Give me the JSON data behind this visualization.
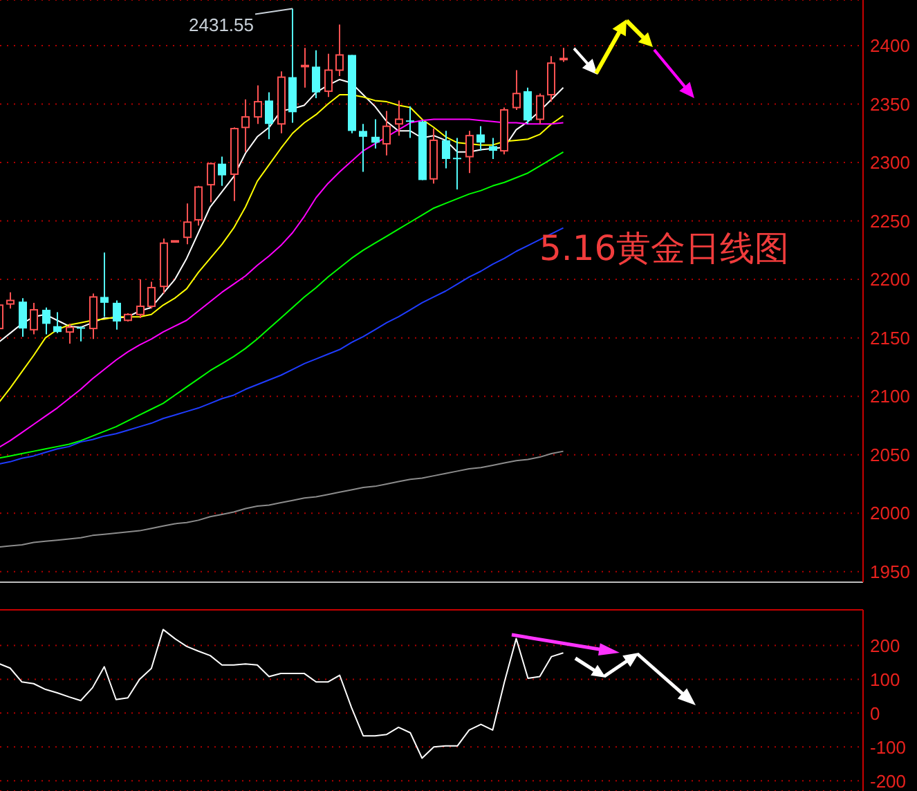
{
  "chart_data": [
    {
      "type": "candlestick",
      "title": "5.16黄金日线图",
      "categories": [
        null,
        null,
        null,
        null,
        null,
        null,
        null,
        null,
        null,
        null,
        null,
        null,
        null,
        null,
        null,
        null,
        null,
        null,
        null,
        null,
        null,
        null,
        null,
        null,
        null,
        null,
        null,
        null,
        null,
        null,
        null,
        null,
        null,
        null,
        null,
        null,
        null,
        null,
        null,
        null,
        null,
        null,
        null,
        null,
        null,
        null,
        null,
        null,
        null
      ],
      "ohlc": [
        [
          2158,
          2180,
          2156,
          2178
        ],
        [
          2179,
          2189,
          2175,
          2182
        ],
        [
          2181,
          2184,
          2151,
          2158
        ],
        [
          2157,
          2180,
          2153,
          2174
        ],
        [
          2174,
          2176,
          2153,
          2162
        ],
        [
          2160,
          2172,
          2154,
          2155
        ],
        [
          2155,
          2162,
          2145,
          2159
        ],
        [
          2159,
          2160,
          2147,
          2158
        ],
        [
          2158,
          2188,
          2149,
          2185
        ],
        [
          2185,
          2223,
          2168,
          2180
        ],
        [
          2180,
          2182,
          2157,
          2164
        ],
        [
          2165,
          2171,
          2164,
          2170
        ],
        [
          2170,
          2200,
          2167,
          2177
        ],
        [
          2177,
          2198,
          2175,
          2193
        ],
        [
          2194,
          2235,
          2188,
          2231
        ],
        [
          2232,
          2233,
          2232,
          2233
        ],
        [
          2236,
          2265,
          2230,
          2249
        ],
        [
          2251,
          2280,
          2246,
          2279
        ],
        [
          2281,
          2300,
          2266,
          2299
        ],
        [
          2299,
          2305,
          2280,
          2289
        ],
        [
          2290,
          2330,
          2267,
          2329
        ],
        [
          2330,
          2354,
          2309,
          2339
        ],
        [
          2339,
          2366,
          2333,
          2352
        ],
        [
          2353,
          2360,
          2320,
          2333
        ],
        [
          2333,
          2378,
          2325,
          2373
        ],
        [
          2373,
          2431.55,
          2334,
          2343
        ],
        [
          2382,
          2398,
          2364,
          2383
        ],
        [
          2382,
          2396,
          2355,
          2360
        ],
        [
          2361,
          2393,
          2356,
          2379
        ],
        [
          2379,
          2418,
          2374,
          2392
        ],
        [
          2392,
          2392,
          2325,
          2327
        ],
        [
          2327,
          2333,
          2292,
          2322
        ],
        [
          2322,
          2337,
          2312,
          2317
        ],
        [
          2316,
          2344,
          2306,
          2331
        ],
        [
          2333,
          2353,
          2323,
          2337
        ],
        [
          2336,
          2348,
          2321,
          2335
        ],
        [
          2335,
          2336,
          2285,
          2285
        ],
        [
          2286,
          2329,
          2282,
          2319
        ],
        [
          2319,
          2327,
          2295,
          2303
        ],
        [
          2304,
          2321,
          2277,
          2303
        ],
        [
          2305,
          2327,
          2291,
          2323
        ],
        [
          2324,
          2331,
          2310,
          2317
        ],
        [
          2314,
          2321,
          2303,
          2310
        ],
        [
          2310,
          2347,
          2307,
          2345
        ],
        [
          2347,
          2379,
          2345,
          2359
        ],
        [
          2361,
          2364,
          2333,
          2336
        ],
        [
          2337,
          2359,
          2333,
          2357
        ],
        [
          2358,
          2391,
          2352,
          2385
        ],
        [
          2388,
          2398,
          2386,
          2389
        ]
      ],
      "colors": [
        "#ff5252",
        "#ff5252",
        "#54fcfc",
        "#ff5252",
        "#54fcfc",
        "#54fcfc",
        "#ff5252",
        "#54fcfc",
        "#ff5252",
        "#54fcfc",
        "#54fcfc",
        "#ff5252",
        "#ff5252",
        "#ff5252",
        "#ff5252",
        "#ff5252",
        "#ff5252",
        "#ff5252",
        "#ff5252",
        "#54fcfc",
        "#ff5252",
        "#ff5252",
        "#ff5252",
        "#54fcfc",
        "#ff5252",
        "#54fcfc",
        "#ff5252",
        "#54fcfc",
        "#ff5252",
        "#ff5252",
        "#54fcfc",
        "#54fcfc",
        "#54fcfc",
        "#ff5252",
        "#ff5252",
        "#54fcfc",
        "#54fcfc",
        "#ff5252",
        "#54fcfc",
        "#54fcfc",
        "#ff5252",
        "#54fcfc",
        "#54fcfc",
        "#ff5252",
        "#ff5252",
        "#54fcfc",
        "#ff5252",
        "#ff5252",
        "#ff5252"
      ],
      "series": [
        {
          "type": "line",
          "color": "#ffffff",
          "values": [
            2146,
            2154,
            2162,
            2168,
            2170,
            2165,
            2160,
            2159,
            2163,
            2167,
            2167,
            2168,
            2173,
            2176,
            2188,
            2200,
            2218,
            2240,
            2262,
            2275,
            2288,
            2308,
            2322,
            2330,
            2344,
            2346,
            2349,
            2360,
            2366,
            2371,
            2368,
            2358,
            2348,
            2335,
            2327,
            2327,
            2321,
            2323,
            2319,
            2309,
            2309,
            2311,
            2312,
            2313,
            2328,
            2335,
            2344,
            2354,
            2364
          ]
        },
        {
          "type": "line",
          "color": "#ffff00",
          "values": [
            2094,
            2107,
            2121,
            2135,
            2150,
            2157,
            2161,
            2163,
            2165,
            2166,
            2168,
            2168,
            2168,
            2170,
            2178,
            2184,
            2192,
            2206,
            2218,
            2230,
            2244,
            2262,
            2284,
            2298,
            2312,
            2325,
            2334,
            2341,
            2350,
            2358,
            2358,
            2356,
            2353,
            2352,
            2349,
            2347,
            2337,
            2330,
            2322,
            2317,
            2316,
            2315,
            2315,
            2318,
            2319,
            2320,
            2324,
            2333,
            2340
          ]
        },
        {
          "type": "line",
          "color": "#ff00ff",
          "values": [
            2056,
            2062,
            2069,
            2076,
            2083,
            2090,
            2098,
            2106,
            2115,
            2123,
            2131,
            2138,
            2144,
            2149,
            2155,
            2160,
            2165,
            2173,
            2181,
            2189,
            2196,
            2203,
            2212,
            2220,
            2229,
            2240,
            2254,
            2270,
            2282,
            2292,
            2301,
            2310,
            2316,
            2322,
            2328,
            2334,
            2336,
            2337,
            2337,
            2337,
            2337,
            2336,
            2335,
            2334,
            2334,
            2333,
            2333,
            2333,
            2334
          ]
        },
        {
          "type": "line",
          "color": "#00ff00",
          "values": [
            2047,
            2049,
            2051,
            2053,
            2055,
            2057,
            2059,
            2062,
            2066,
            2070,
            2074,
            2079,
            2084,
            2089,
            2094,
            2101,
            2108,
            2115,
            2122,
            2128,
            2134,
            2141,
            2149,
            2158,
            2167,
            2176,
            2185,
            2193,
            2202,
            2210,
            2218,
            2225,
            2231,
            2237,
            2243,
            2249,
            2255,
            2261,
            2265,
            2269,
            2273,
            2276,
            2280,
            2283,
            2287,
            2291,
            2297,
            2303,
            2309
          ]
        },
        {
          "type": "line",
          "color": "#1f3cff",
          "values": [
            2042,
            2044,
            2047,
            2049,
            2052,
            2055,
            2057,
            2061,
            2063,
            2066,
            2068,
            2071,
            2074,
            2077,
            2081,
            2084,
            2087,
            2090,
            2094,
            2098,
            2101,
            2106,
            2110,
            2114,
            2118,
            2123,
            2128,
            2132,
            2136,
            2140,
            2146,
            2151,
            2157,
            2163,
            2168,
            2174,
            2180,
            2185,
            2190,
            2196,
            2202,
            2207,
            2213,
            2218,
            2224,
            2229,
            2234,
            2239,
            2244
          ]
        },
        {
          "type": "line",
          "color": "#8c8c8c",
          "values": [
            1971,
            1972,
            1973,
            1975,
            1976,
            1977,
            1978,
            1979,
            1981,
            1982,
            1983,
            1984,
            1985,
            1987,
            1989,
            1991,
            1992,
            1994,
            1997,
            1999,
            2001,
            2004,
            2006,
            2007,
            2009,
            2011,
            2013,
            2014,
            2016,
            2018,
            2020,
            2022,
            2023,
            2025,
            2027,
            2029,
            2030,
            2032,
            2034,
            2036,
            2038,
            2039,
            2041,
            2043,
            2045,
            2046,
            2048,
            2051,
            2053
          ]
        }
      ],
      "ylim": [
        1941,
        2439
      ],
      "yticks": [
        1950,
        2000,
        2050,
        2100,
        2150,
        2200,
        2250,
        2300,
        2350,
        2400
      ],
      "grid": "y",
      "tick_labels": "y",
      "marker": "none",
      "annotations": [
        "2431.55"
      ]
    },
    {
      "type": "line",
      "categories": [
        null,
        null,
        null,
        null,
        null,
        null,
        null,
        null,
        null,
        null,
        null,
        null,
        null,
        null,
        null,
        null,
        null,
        null,
        null,
        null,
        null,
        null,
        null,
        null,
        null,
        null,
        null,
        null,
        null,
        null,
        null,
        null,
        null,
        null,
        null,
        null,
        null,
        null,
        null,
        null,
        null,
        null,
        null,
        null,
        null,
        null,
        null,
        null,
        null
      ],
      "values": [
        147,
        133,
        92,
        87,
        70,
        60,
        48,
        37,
        75,
        137,
        40,
        45,
        100,
        132,
        247,
        220,
        197,
        183,
        170,
        142,
        142,
        145,
        142,
        108,
        117,
        117,
        117,
        92,
        92,
        112,
        17,
        -67,
        -67,
        -63,
        -42,
        -58,
        -133,
        -100,
        -97,
        -97,
        -50,
        -33,
        -50,
        92,
        220,
        103,
        108,
        167,
        178
      ],
      "color": "#ffffff",
      "ylim": [
        -230,
        305
      ],
      "yticks": [
        -200,
        -100,
        0,
        100,
        200
      ],
      "grid": "y",
      "tick_labels": "y",
      "marker": "none"
    }
  ]
}
